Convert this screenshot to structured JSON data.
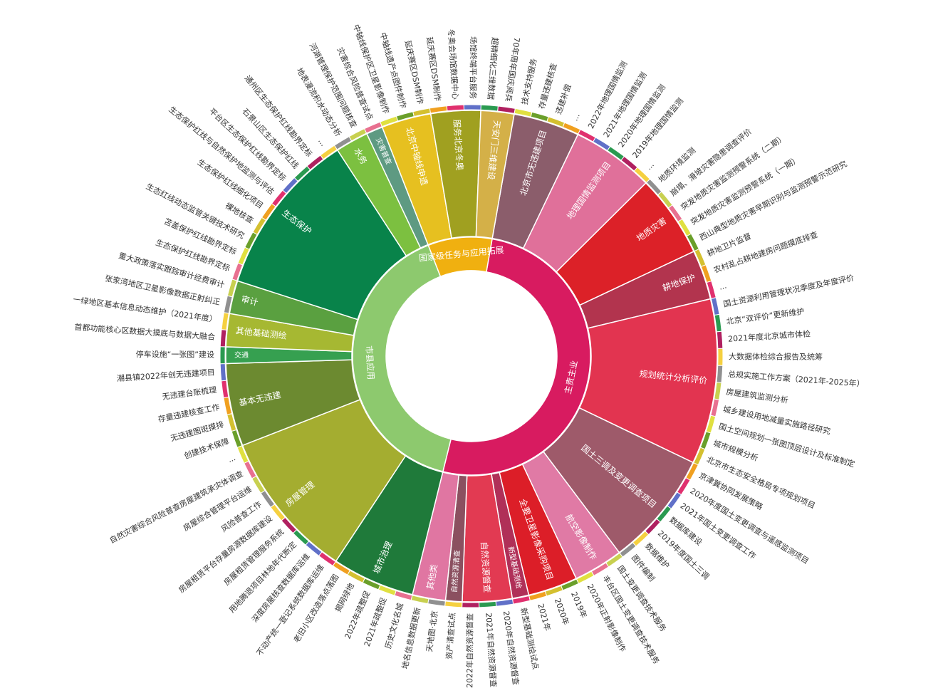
{
  "chart_data": {
    "type": "sunburst",
    "colors": {
      "主责主业": "#d81b60",
      "市县应用": "#8dc96e",
      "国家级任务与应用拓展": "#f0b010",
      "leaf_cycle": [
        "#e0e040",
        "#6a9f2a",
        "#d4c030",
        "#f0a020",
        "#e0306e",
        "#6070c8",
        "#2a9a50",
        "#b02060",
        "#f5d040",
        "#909090",
        "#c8d050",
        "#e87090"
      ]
    },
    "tiers": [
      {
        "name": "主责主业",
        "children": [
          {
            "name": "北京市无违建项目",
            "color": "#8b5d6b",
            "leaves": [
              "技术支持服务",
              "存量违建核查",
              "违建补偿",
              "..."
            ]
          },
          {
            "name": "地理国情监测项目",
            "color": "#e0709a",
            "leaves": [
              "2022年地理国情监测",
              "2021年地理国情监测",
              "2020年地理国情监测",
              "2019年地理国情监测",
              "..."
            ]
          },
          {
            "name": "地质灾害",
            "color": "#dc2128",
            "leaves": [
              "地质环境监测",
              "崩塌、滑坡灾害隐患调查评价",
              "突发地质灾害监测预警系统（二期）",
              "突发地质灾害监测预警系统（一期）",
              "西山典型地质灾害早期识别与监测预警示范研究"
            ]
          },
          {
            "name": "耕地保护",
            "color": "#b2344e",
            "leaves": [
              "耕地卫片监督",
              "农村乱占耕地建房问题摸底排查",
              "..."
            ]
          },
          {
            "name": "规划统计分析评价",
            "color": "#e23450",
            "leaves": [
              "国土资源利用管理状况季度及年度评价",
              "北京“双评价”更新维护",
              "2021年度北京城市体检",
              "大数据体检综合报告及统筹",
              "总规实施工作方案（2021年-2025年）",
              "房屋建筑监测分析",
              "城乡建设用地减量实施路径研究",
              "国土空间规划一张图顶层设计及标准制定",
              "城市规模分析",
              "北京市生态安全格局专项规划项目"
            ]
          },
          {
            "name": "国土三调及变更调查项目",
            "color": "#9e5a6a",
            "leaves": [
              "京津冀协同发展策略",
              "2020年度国土变更调查与遥感监测项目",
              "2021年国土变更调查工作",
              "数据库建设",
              "2019年度国土三调",
              "数据维护",
              "图件编制"
            ]
          },
          {
            "name": "航空影像制作",
            "color": "#e07aa5",
            "leaves": [
              "国土变更调查技术服务",
              "丰台区国土变更调查技术服务",
              "2020年正射影像制作"
            ]
          },
          {
            "name": "全要卫星影像采购项目",
            "color": "#dc1e28",
            "leaves": [
              "2019年",
              "2020年",
              "2021年"
            ]
          },
          {
            "name": "新型基础测绘",
            "color": "#b03058",
            "leaves": [
              "新型基础测绘试点"
            ]
          },
          {
            "name": "自然资源督查",
            "color": "#e23a52",
            "leaves": [
              "2020年自然资源督查",
              "2021年自然资源督查",
              "2022年自然资源督查"
            ]
          },
          {
            "name": "自然资源清查",
            "color": "#8b5060",
            "leaves": [
              "资产清查试点"
            ]
          },
          {
            "name": "其他类",
            "color": "#e076a2",
            "leaves": [
              "天地图·北京",
              "地名信息数据更新"
            ]
          }
        ]
      },
      {
        "name": "市县应用",
        "children": [
          {
            "name": "城市治理",
            "color": "#1f7a3a",
            "leaves": [
              "历史文化名城",
              "2021年疏整促",
              "2022年疏整促",
              "揭网绿地",
              "老旧小区改造落点落图"
            ]
          },
          {
            "name": "房屋管理",
            "color": "#a4ad30",
            "leaves": [
              "不动产统一登记系统数据库运维",
              "深度房屋核查数据库运维",
              "用地腾退项目林地年代断定",
              "房屋租赁管理服务系统",
              "房屋租赁平台存量房源数据库建设",
              "风险普查工作",
              "房屋综合管理平台运维",
              "自然灾害综合风险普查房屋建筑承灾体调查",
              "..."
            ]
          },
          {
            "name": "基本无违建",
            "color": "#6c8a30",
            "leaves": [
              "创建技术保障",
              "无违建图斑摸排",
              "存量违建核查工作",
              "无违建台账梳理",
              "潮县镇2022年创无违建项目"
            ]
          },
          {
            "name": "交通",
            "color": "#36a050",
            "leaves": [
              "停车设施“一张图”建设"
            ]
          },
          {
            "name": "其他基础测绘",
            "color": "#a6b832",
            "leaves": [
              "首都功能核心区数据大摸底与数据大融合",
              "一绿地区基本信息动态维护（2021年度）"
            ]
          },
          {
            "name": "审计",
            "color": "#5aa040",
            "leaves": [
              "张家湾地区卫星影像数据正射纠正",
              "重大政策落实跟踪审计经费审计"
            ]
          },
          {
            "name": "生态保护",
            "color": "#08834a",
            "leaves": [
              "生态保护红线勘界定标",
              "苫盖保护红线勘界定标",
              "生态红线动态监管关键技术研究",
              "裸地核查",
              "生态保护红线细化项目",
              "生态保护红线与自然保护地监测与评估",
              "平台区生态保护红线勘界定标",
              "石景山区生态保护红线",
              "通州区生态保护红线勘界定标",
              "..."
            ]
          },
          {
            "name": "水务",
            "color": "#7cc040",
            "leaves": [
              "地表漫流积水动态分析",
              "河湖管理保护范围问题核查"
            ]
          },
          {
            "name": "灾害普查",
            "color": "#5e9a82",
            "leaves": [
              "灾害综合风险普查试点"
            ]
          }
        ]
      },
      {
        "name": "国家级任务与应用拓展",
        "children": [
          {
            "name": "北京中轴线申遗",
            "color": "#e6c020",
            "leaves": [
              "中轴线保护区卫星影像制作",
              "中轴线遗产点图件制作",
              "延庆赛区DSM制作"
            ]
          },
          {
            "name": "服务北京冬奥",
            "color": "#a0a020",
            "leaves": [
              "延庆赛区DSM制作",
              "冬奥会场馆数据中心",
              "场馆终端平台服务"
            ]
          },
          {
            "name": "天安门三维建设",
            "color": "#d4b048",
            "leaves": [
              "超精细化三维数据",
              "70年周年国庆阅兵"
            ]
          }
        ]
      }
    ]
  }
}
